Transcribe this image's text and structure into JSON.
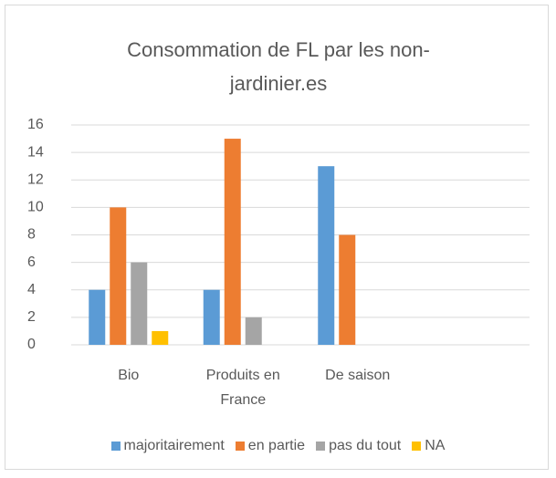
{
  "chart_data": {
    "type": "bar",
    "title": "Consommation de FL par les non-jardinier.es",
    "categories": [
      "Bio",
      "Produits en France",
      "De saison",
      null
    ],
    "series": [
      {
        "name": "majoritairement",
        "color": "#5b9bd5",
        "values": [
          4,
          4,
          13,
          null
        ]
      },
      {
        "name": "en partie",
        "color": "#ed7d31",
        "values": [
          10,
          15,
          8,
          null
        ]
      },
      {
        "name": "pas du tout",
        "color": "#a5a5a5",
        "values": [
          6,
          2,
          null,
          null
        ]
      },
      {
        "name": "NA",
        "color": "#ffc000",
        "values": [
          1,
          null,
          null,
          null
        ]
      }
    ],
    "ylim": [
      0,
      16
    ],
    "yticks": [
      0,
      2,
      4,
      6,
      8,
      10,
      12,
      14,
      16
    ],
    "grid": true,
    "legend": "bottom"
  }
}
